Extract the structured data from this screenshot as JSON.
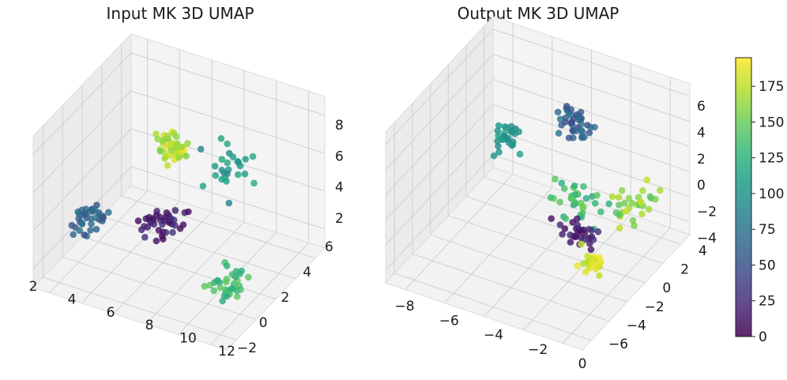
{
  "chart_data": [
    {
      "type": "scatter",
      "projection": "3d",
      "title": "Input MK 3D UMAP",
      "xlabel": "",
      "ylabel": "",
      "zlabel": "",
      "xlim": [
        1.5,
        12
      ],
      "ylim": [
        -2.3,
        7.2
      ],
      "zlim": [
        0.5,
        9.4
      ],
      "x_ticks": [
        "2",
        "4",
        "6",
        "8",
        "10",
        "12"
      ],
      "y_ticks": [
        "−2",
        "0",
        "2",
        "4",
        "6"
      ],
      "z_ticks": [
        "2",
        "4",
        "6",
        "8"
      ],
      "color_range": [
        0,
        195
      ],
      "clusters": [
        {
          "label": "yellow-green group",
          "center": [
            4.8,
            5.2,
            5.2
          ],
          "spread": [
            1.3,
            1.0,
            1.4
          ],
          "count": 42,
          "color_value": [
            150,
            192
          ]
        },
        {
          "label": "teal arc",
          "center": [
            8.2,
            4.6,
            5.6
          ],
          "spread": [
            1.6,
            1.5,
            1.8
          ],
          "count": 26,
          "color_value": [
            85,
            120
          ]
        },
        {
          "label": "purple band",
          "center": [
            5.6,
            3.0,
            2.4
          ],
          "spread": [
            2.0,
            1.4,
            0.8
          ],
          "count": 40,
          "color_value": [
            2,
            30
          ]
        },
        {
          "label": "blue group",
          "center": [
            2.4,
            1.5,
            2.3
          ],
          "spread": [
            1.0,
            1.5,
            0.8
          ],
          "count": 36,
          "color_value": [
            45,
            75
          ]
        },
        {
          "label": "green tail",
          "center": [
            10.2,
            1.0,
            1.6
          ],
          "spread": [
            1.1,
            1.4,
            1.0
          ],
          "count": 34,
          "color_value": [
            120,
            150
          ]
        }
      ]
    },
    {
      "type": "scatter",
      "projection": "3d",
      "title": "Output MK 3D UMAP",
      "xlabel": "",
      "ylabel": "",
      "zlabel": "",
      "xlim": [
        -9.4,
        0.2
      ],
      "ylim": [
        -7.3,
        4.4
      ],
      "zlim": [
        -4.2,
        7.2
      ],
      "x_ticks": [
        "−8",
        "−6",
        "−4",
        "−2",
        "0"
      ],
      "y_ticks": [
        "−6",
        "−4",
        "−2",
        "0",
        "2",
        "4"
      ],
      "z_ticks": [
        "−4",
        "−2",
        "0",
        "2",
        "4",
        "6"
      ],
      "color_range": [
        0,
        195
      ],
      "clusters": [
        {
          "label": "teal loop",
          "center": [
            -7.6,
            2.2,
            1.0
          ],
          "spread": [
            1.0,
            1.4,
            1.8
          ],
          "count": 28,
          "color_value": [
            90,
            115
          ]
        },
        {
          "label": "blue group",
          "center": [
            -4.6,
            2.6,
            3.0
          ],
          "spread": [
            1.2,
            1.2,
            1.6
          ],
          "count": 40,
          "color_value": [
            40,
            80
          ]
        },
        {
          "label": "green spread",
          "center": [
            -3.0,
            -0.5,
            0.2
          ],
          "spread": [
            2.2,
            2.0,
            1.6
          ],
          "count": 34,
          "color_value": [
            115,
            160
          ]
        },
        {
          "label": "purple group",
          "center": [
            -2.6,
            -1.8,
            -1.2
          ],
          "spread": [
            1.8,
            1.6,
            1.0
          ],
          "count": 30,
          "color_value": [
            2,
            30
          ]
        },
        {
          "label": "yellow group",
          "center": [
            -1.6,
            -2.4,
            -2.4
          ],
          "spread": [
            1.0,
            1.2,
            0.7
          ],
          "count": 22,
          "color_value": [
            170,
            192
          ]
        },
        {
          "label": "yellow-green band",
          "center": [
            -0.8,
            0.4,
            0.4
          ],
          "spread": [
            1.4,
            2.4,
            1.2
          ],
          "count": 30,
          "color_value": [
            140,
            178
          ]
        }
      ]
    }
  ],
  "colorbar": {
    "ticks": [
      "0",
      "25",
      "50",
      "75",
      "100",
      "125",
      "150",
      "175"
    ],
    "tick_values": [
      0,
      25,
      50,
      75,
      100,
      125,
      150,
      175
    ],
    "range": [
      0,
      195
    ],
    "colormap": [
      "#440154",
      "#482878",
      "#3e4989",
      "#31688e",
      "#26828e",
      "#1f9e89",
      "#35b779",
      "#6ece58",
      "#b5de2b",
      "#fde725"
    ]
  }
}
